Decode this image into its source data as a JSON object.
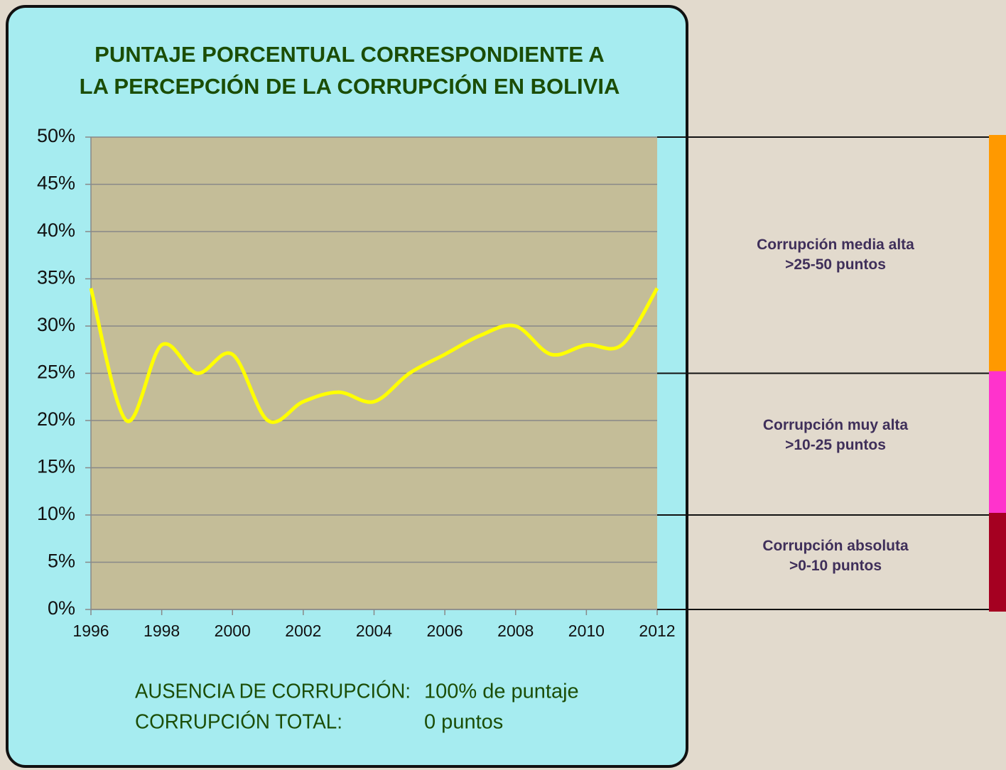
{
  "chart_data": {
    "type": "line",
    "title": [
      "PUNTAJE PORCENTUAL CORRESPONDIENTE A",
      "LA PERCEPCIÓN DE LA CORRUPCIÓN EN BOLIVIA"
    ],
    "x": [
      1996,
      1997,
      1998,
      1999,
      2000,
      2001,
      2002,
      2003,
      2004,
      2005,
      2006,
      2007,
      2008,
      2009,
      2010,
      2011,
      2012
    ],
    "series": [
      {
        "color": "#ffff00",
        "values": [
          34,
          20,
          28,
          25,
          27,
          20,
          22,
          23,
          22,
          25,
          27,
          29,
          30,
          27,
          28,
          28,
          34
        ]
      }
    ],
    "xlim": [
      1996,
      2012
    ],
    "xticks": [
      1996,
      1998,
      2000,
      2002,
      2004,
      2006,
      2008,
      2010,
      2012
    ],
    "ylim": [
      0,
      50
    ],
    "yticks": [
      {
        "value": 0,
        "label": "0%"
      },
      {
        "value": 5,
        "label": "5%"
      },
      {
        "value": 10,
        "label": "10%"
      },
      {
        "value": 15,
        "label": "15%"
      },
      {
        "value": 20,
        "label": "20%"
      },
      {
        "value": 25,
        "label": "25%"
      },
      {
        "value": 30,
        "label": "30%"
      },
      {
        "value": 35,
        "label": "35%"
      },
      {
        "value": 40,
        "label": "40%"
      },
      {
        "value": 45,
        "label": "45%"
      },
      {
        "value": 50,
        "label": "50%"
      }
    ],
    "grid": true,
    "bands": [
      {
        "name": "Corrupción media alta",
        "range_label": ">25-50 puntos",
        "from": 25,
        "to": 50,
        "color": "#ff9900"
      },
      {
        "name": "Corrupción muy alta",
        "range_label": ">10-25 puntos",
        "from": 10,
        "to": 25,
        "color": "#ff33cc"
      },
      {
        "name": "Corrupción absoluta",
        "range_label": ">0-10 puntos",
        "from": 0,
        "to": 10,
        "color": "#a50021"
      }
    ],
    "notes": [
      [
        "AUSENCIA DE CORRUPCIÓN:",
        "100% de puntaje"
      ],
      [
        "CORRUPCIÓN TOTAL:",
        "0 puntos"
      ]
    ]
  }
}
